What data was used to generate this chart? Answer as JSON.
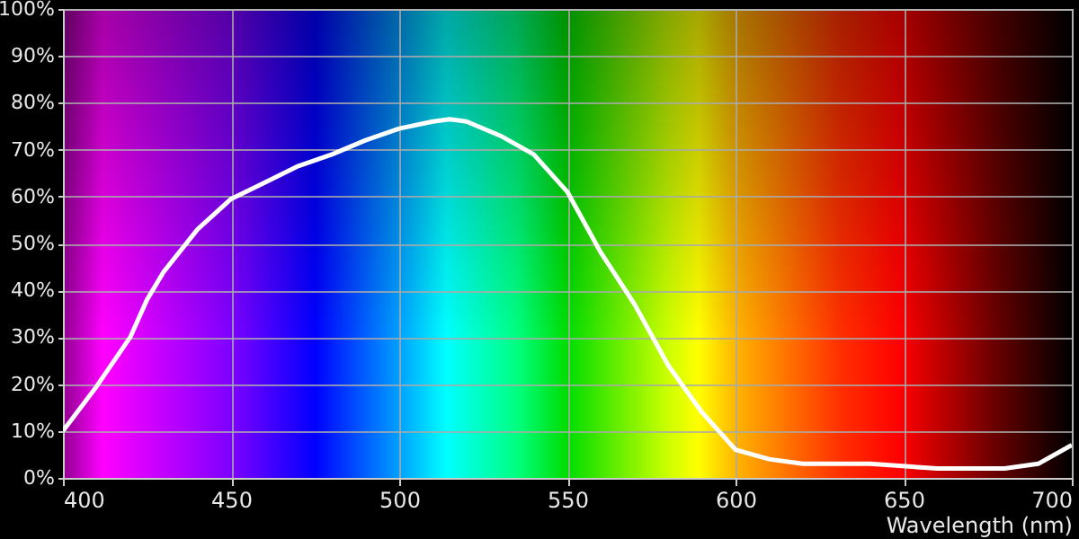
{
  "chart_data": {
    "type": "line",
    "xlabel": "Wavelength (nm)",
    "series": [
      {
        "color": "#ffffff",
        "x": [
          400,
          410,
          420,
          425,
          430,
          440,
          450,
          460,
          470,
          480,
          490,
          500,
          510,
          515,
          520,
          530,
          540,
          550,
          560,
          570,
          580,
          590,
          600,
          610,
          620,
          640,
          660,
          680,
          690,
          700
        ],
        "values": [
          10,
          19.5,
          30,
          38,
          44,
          53,
          59.5,
          63,
          66.5,
          69,
          72,
          74.5,
          76,
          76.5,
          76,
          73,
          69,
          61,
          48,
          37,
          24,
          14,
          6,
          4,
          3,
          3,
          2,
          2,
          3,
          7
        ]
      }
    ],
    "xlim": [
      400,
      700
    ],
    "xticks": [
      400,
      450,
      500,
      550,
      600,
      650,
      700
    ],
    "ylim": [
      0,
      100
    ],
    "yticks": [
      {
        "value": 0,
        "label": "0%"
      },
      {
        "value": 10,
        "label": "10%"
      },
      {
        "value": 20,
        "label": "20%"
      },
      {
        "value": 30,
        "label": "30%"
      },
      {
        "value": 40,
        "label": "40%"
      },
      {
        "value": 50,
        "label": "50%"
      },
      {
        "value": 60,
        "label": "60%"
      },
      {
        "value": 70,
        "label": "70%"
      },
      {
        "value": 80,
        "label": "80%"
      },
      {
        "value": 90,
        "label": "90%"
      },
      {
        "value": 100,
        "label": "100%"
      }
    ],
    "grid": true,
    "marker": "none",
    "line_style": "solid"
  }
}
